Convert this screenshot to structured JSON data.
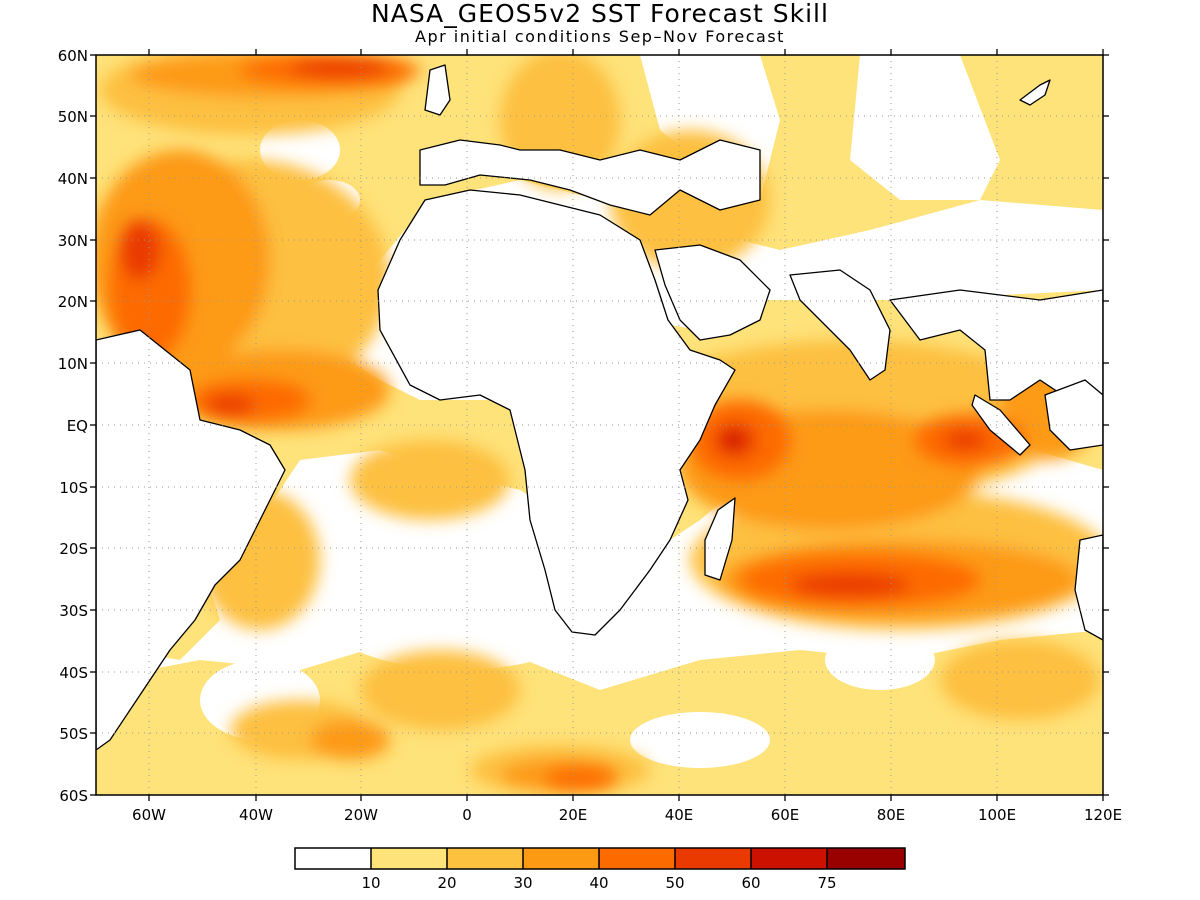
{
  "title": "NASA_GEOS5v2 SST Forecast Skill",
  "subtitle": "Apr initial conditions  Sep–Nov Forecast",
  "lat_labels": [
    "60N",
    "50N",
    "40N",
    "30N",
    "20N",
    "10N",
    "EQ",
    "10S",
    "20S",
    "30S",
    "40S",
    "50S",
    "60S"
  ],
  "lon_labels": [
    "60W",
    "40W",
    "20W",
    "0",
    "20E",
    "40E",
    "60E",
    "80E",
    "100E",
    "120E"
  ],
  "colorbar": {
    "labels": [
      "10",
      "20",
      "30",
      "40",
      "50",
      "60",
      "75"
    ],
    "colors": [
      "#ffffff",
      "#fee27a",
      "#fdc03f",
      "#fd9a14",
      "#fd6a00",
      "#ea3a00",
      "#cc1100",
      "#990000"
    ]
  }
}
